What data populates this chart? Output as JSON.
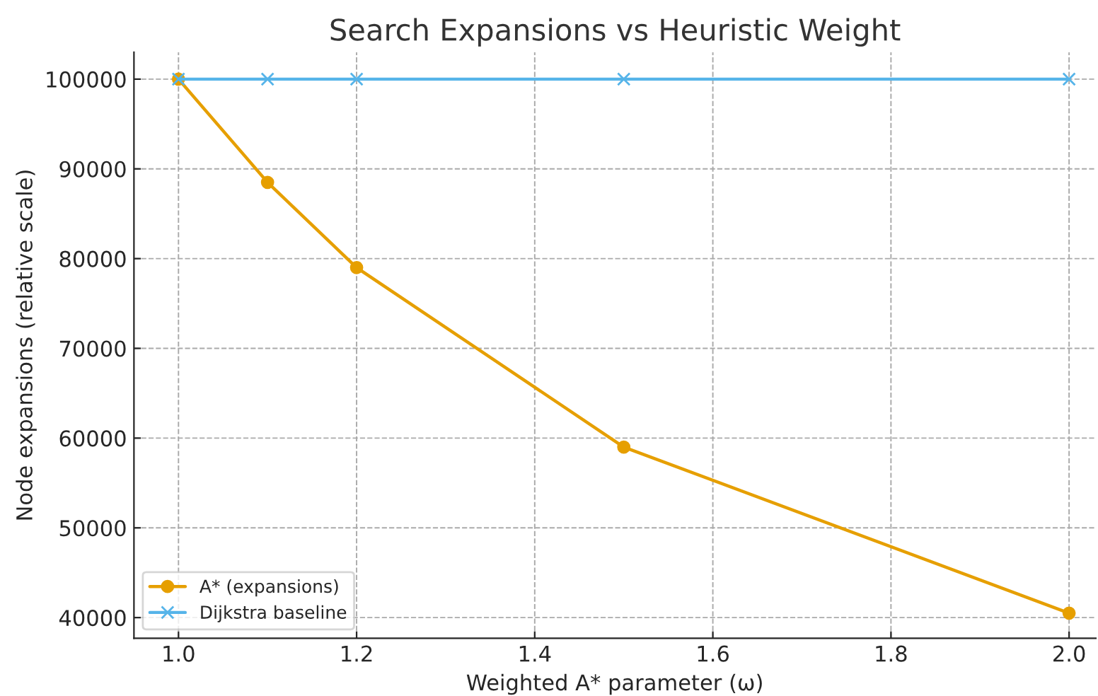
{
  "chart_data": {
    "type": "line",
    "title": "Search Expansions vs Heuristic Weight",
    "xlabel": "Weighted A* parameter (ω)",
    "ylabel": "Node expansions (relative scale)",
    "x": [
      1.0,
      1.1,
      1.2,
      1.5,
      2.0
    ],
    "series": [
      {
        "name": "A* (expansions)",
        "color": "#e69f00",
        "values": [
          100000,
          88500,
          79000,
          59000,
          40500
        ],
        "marker": "circle"
      },
      {
        "name": "Dijkstra baseline",
        "color": "#56b4e9",
        "values": [
          100000,
          100000,
          100000,
          100000,
          100000
        ],
        "marker": "cross"
      }
    ],
    "xlim": [
      0.95,
      2.03
    ],
    "xticks": [
      {
        "value": 1.0,
        "label": "1.0"
      },
      {
        "value": 1.2,
        "label": "1.2"
      },
      {
        "value": 1.4,
        "label": "1.4"
      },
      {
        "value": 1.6,
        "label": "1.6"
      },
      {
        "value": 1.8,
        "label": "1.8"
      },
      {
        "value": 2.0,
        "label": "2.0"
      }
    ],
    "ylim": [
      37700,
      103000
    ],
    "yticks": [
      40000,
      50000,
      60000,
      70000,
      80000,
      90000,
      100000
    ],
    "grid": true,
    "legend": "bottom left",
    "line_style": "solid"
  }
}
